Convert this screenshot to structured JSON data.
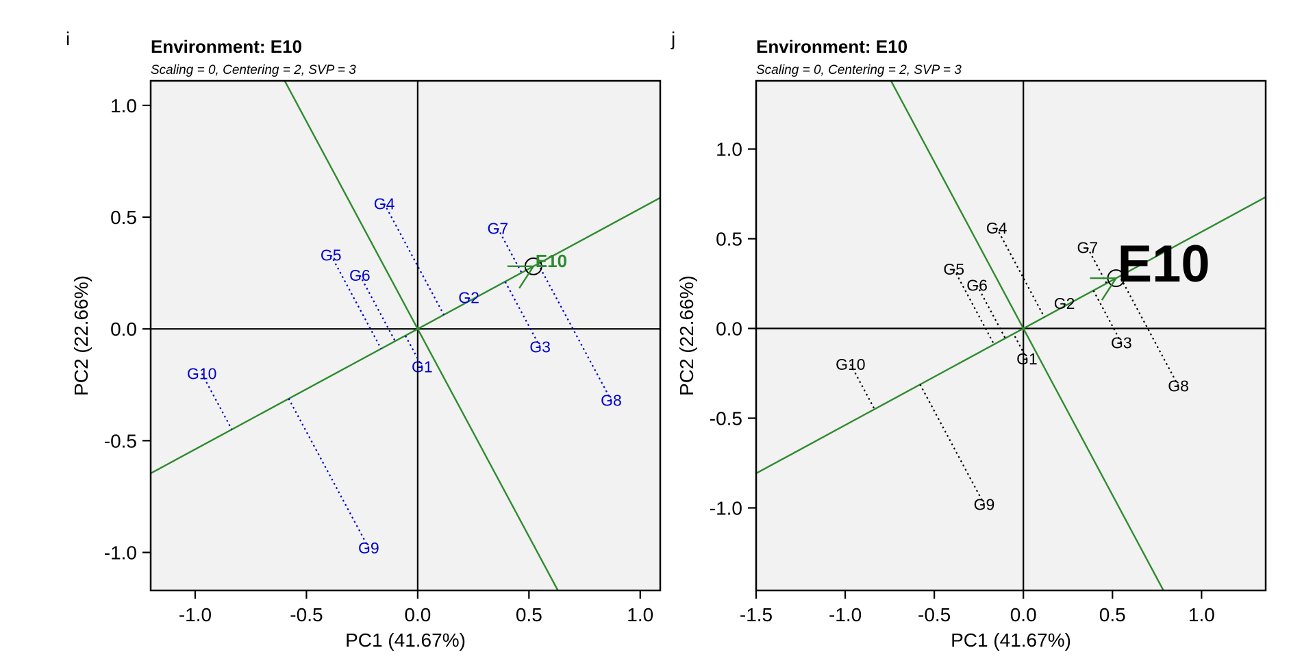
{
  "chart_data": [
    {
      "type": "scatter",
      "panel_label": "i",
      "title": "Environment: E10",
      "subtitle": "Scaling = 0, Centering = 2, SVP = 3",
      "xlabel": "PC1 (41.67%)",
      "ylabel": "PC2 (22.66%)",
      "xlim": [
        -1.2,
        1.09
      ],
      "ylim": [
        -1.17,
        1.11
      ],
      "xticks": [
        -1.0,
        -0.5,
        0.0,
        0.5,
        1.0
      ],
      "yticks": [
        -1.0,
        -0.5,
        0.0,
        0.5,
        1.0
      ],
      "tick_labels_x": [
        "-1.0",
        "-0.5",
        "0.0",
        "0.5",
        "1.0"
      ],
      "tick_labels_y": [
        "-1.0",
        "-0.5",
        "0.0",
        "0.5",
        "1.0"
      ],
      "genotype_color": "#0000cc",
      "genotype_label_style": "small",
      "environment_label_style": "normal",
      "genotypes": [
        {
          "name": "G1",
          "x": 0.02,
          "y": -0.17
        },
        {
          "name": "G2",
          "x": 0.23,
          "y": 0.14
        },
        {
          "name": "G3",
          "x": 0.55,
          "y": -0.08
        },
        {
          "name": "G4",
          "x": -0.15,
          "y": 0.56
        },
        {
          "name": "G5",
          "x": -0.39,
          "y": 0.33
        },
        {
          "name": "G6",
          "x": -0.26,
          "y": 0.24
        },
        {
          "name": "G7",
          "x": 0.36,
          "y": 0.45
        },
        {
          "name": "G8",
          "x": 0.87,
          "y": -0.32
        },
        {
          "name": "G9",
          "x": -0.22,
          "y": -0.98
        },
        {
          "name": "G10",
          "x": -0.97,
          "y": -0.2
        }
      ],
      "environment": {
        "name": "E10",
        "x": 0.52,
        "y": 0.28
      }
    },
    {
      "type": "scatter",
      "panel_label": "j",
      "title": "Environment: E10",
      "subtitle": "Scaling = 0, Centering = 2, SVP = 3",
      "xlabel": "PC1 (41.67%)",
      "ylabel": "PC2 (22.66%)",
      "xlim": [
        -1.5,
        1.36
      ],
      "ylim": [
        -1.46,
        1.38
      ],
      "xticks": [
        -1.5,
        -1.0,
        -0.5,
        0.0,
        0.5,
        1.0
      ],
      "yticks": [
        -1.0,
        -0.5,
        0.0,
        0.5,
        1.0
      ],
      "tick_labels_x": [
        "-1.5",
        "-1.0",
        "-0.5",
        "0.0",
        "0.5",
        "1.0"
      ],
      "tick_labels_y": [
        "-1.0",
        "-0.5",
        "0.0",
        "0.5",
        "1.0"
      ],
      "genotype_color": "#000000",
      "genotype_label_style": "small",
      "environment_label_style": "large",
      "genotypes": [
        {
          "name": "G1",
          "x": 0.02,
          "y": -0.17
        },
        {
          "name": "G2",
          "x": 0.23,
          "y": 0.14
        },
        {
          "name": "G3",
          "x": 0.55,
          "y": -0.08
        },
        {
          "name": "G4",
          "x": -0.15,
          "y": 0.56
        },
        {
          "name": "G5",
          "x": -0.39,
          "y": 0.33
        },
        {
          "name": "G6",
          "x": -0.26,
          "y": 0.24
        },
        {
          "name": "G7",
          "x": 0.36,
          "y": 0.45
        },
        {
          "name": "G8",
          "x": 0.87,
          "y": -0.32
        },
        {
          "name": "G9",
          "x": -0.22,
          "y": -0.98
        },
        {
          "name": "G10",
          "x": -0.97,
          "y": -0.2
        }
      ],
      "environment": {
        "name": "E10",
        "x": 0.52,
        "y": 0.28
      }
    }
  ],
  "colors": {
    "axis_line": "#2e8b2e",
    "environment": "#2e8b2e",
    "plot_bg": "#f2f2f2",
    "frame": "#000000"
  }
}
